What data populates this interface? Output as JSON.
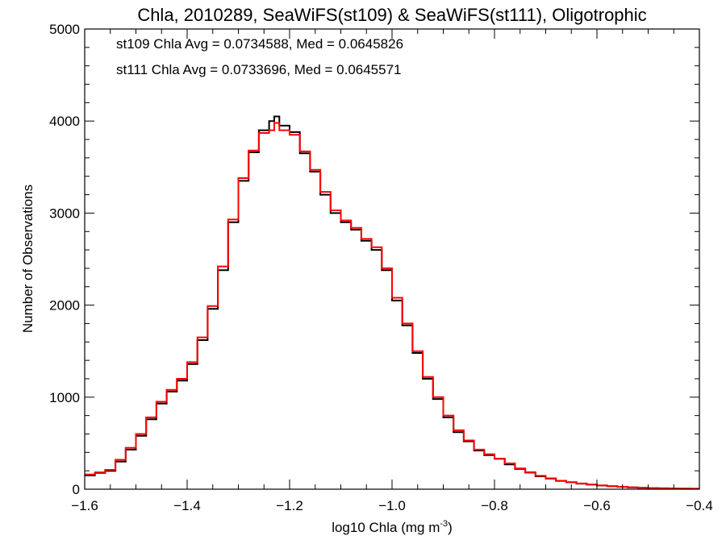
{
  "chart_data": {
    "type": "histogram",
    "title": "Chla, 2010289, SeaWiFS(st109) & SeaWiFS(st111), Oligotrophic",
    "xlabel": "log10 Chla (mg m",
    "xlabel_sup": "-3",
    "xlabel_close": ")",
    "ylabel": "Number of Observations",
    "xlim": [
      -1.6,
      -0.4
    ],
    "ylim": [
      0,
      5000
    ],
    "x_ticks": [
      -1.6,
      -1.4,
      -1.2,
      -1.0,
      -0.8,
      -0.6,
      -0.4
    ],
    "x_tick_labels": [
      "−1.6",
      "−1.4",
      "−1.2",
      "−1.0",
      "−0.8",
      "−0.6",
      "−0.4"
    ],
    "y_ticks": [
      0,
      1000,
      2000,
      3000,
      4000,
      5000
    ],
    "y_tick_labels": [
      "0",
      "1000",
      "2000",
      "3000",
      "4000",
      "5000"
    ],
    "annotations": [
      {
        "text": "st109 Chla Avg = 0.0734588, Med = 0.0645826",
        "color": "#000000"
      },
      {
        "text": "st111 Chla Avg = 0.0733696, Med = 0.0645571",
        "color": "#ff0000"
      }
    ],
    "series": [
      {
        "color": "#000000",
        "x": [
          -1.6,
          -1.58,
          -1.56,
          -1.54,
          -1.52,
          -1.5,
          -1.48,
          -1.46,
          -1.44,
          -1.42,
          -1.4,
          -1.38,
          -1.36,
          -1.34,
          -1.32,
          -1.3,
          -1.28,
          -1.26,
          -1.24,
          -1.23,
          -1.22,
          -1.2,
          -1.18,
          -1.16,
          -1.14,
          -1.12,
          -1.1,
          -1.08,
          -1.06,
          -1.04,
          -1.02,
          -1.0,
          -0.98,
          -0.96,
          -0.94,
          -0.92,
          -0.9,
          -0.88,
          -0.86,
          -0.84,
          -0.82,
          -0.8,
          -0.78,
          -0.76,
          -0.74,
          -0.72,
          -0.7,
          -0.68,
          -0.66,
          -0.64,
          -0.62,
          -0.6,
          -0.58,
          -0.56,
          -0.54,
          -0.52,
          -0.5,
          -0.48,
          -0.46,
          -0.44,
          -0.42
        ],
        "y": [
          150,
          180,
          200,
          300,
          430,
          580,
          760,
          930,
          1060,
          1180,
          1360,
          1620,
          1960,
          2380,
          2900,
          3350,
          3660,
          3900,
          4000,
          4050,
          3950,
          3880,
          3650,
          3450,
          3200,
          3000,
          2900,
          2820,
          2700,
          2600,
          2380,
          2050,
          1780,
          1480,
          1200,
          980,
          780,
          620,
          520,
          420,
          370,
          330,
          270,
          220,
          180,
          140,
          115,
          90,
          75,
          60,
          50,
          40,
          32,
          25,
          20,
          15,
          12,
          10,
          8,
          6,
          5
        ]
      },
      {
        "color": "#ff0000",
        "x": [
          -1.6,
          -1.58,
          -1.56,
          -1.54,
          -1.52,
          -1.5,
          -1.48,
          -1.46,
          -1.44,
          -1.42,
          -1.4,
          -1.38,
          -1.36,
          -1.34,
          -1.32,
          -1.3,
          -1.28,
          -1.26,
          -1.24,
          -1.23,
          -1.22,
          -1.2,
          -1.18,
          -1.16,
          -1.14,
          -1.12,
          -1.1,
          -1.08,
          -1.06,
          -1.04,
          -1.02,
          -1.0,
          -0.98,
          -0.96,
          -0.94,
          -0.92,
          -0.9,
          -0.88,
          -0.86,
          -0.84,
          -0.82,
          -0.8,
          -0.78,
          -0.76,
          -0.74,
          -0.72,
          -0.7,
          -0.68,
          -0.66,
          -0.64,
          -0.62,
          -0.6,
          -0.58,
          -0.56,
          -0.54,
          -0.52,
          -0.5,
          -0.48,
          -0.46,
          -0.44,
          -0.42
        ],
        "y": [
          160,
          175,
          210,
          320,
          450,
          600,
          780,
          950,
          1080,
          1200,
          1380,
          1650,
          1990,
          2420,
          2930,
          3380,
          3680,
          3870,
          3900,
          3980,
          3900,
          3850,
          3670,
          3470,
          3230,
          3030,
          2920,
          2840,
          2720,
          2630,
          2400,
          2080,
          1800,
          1500,
          1220,
          1000,
          800,
          640,
          530,
          430,
          380,
          330,
          280,
          225,
          185,
          145,
          118,
          92,
          77,
          62,
          50,
          40,
          32,
          26,
          20,
          15,
          12,
          10,
          8,
          6,
          5
        ]
      }
    ]
  }
}
